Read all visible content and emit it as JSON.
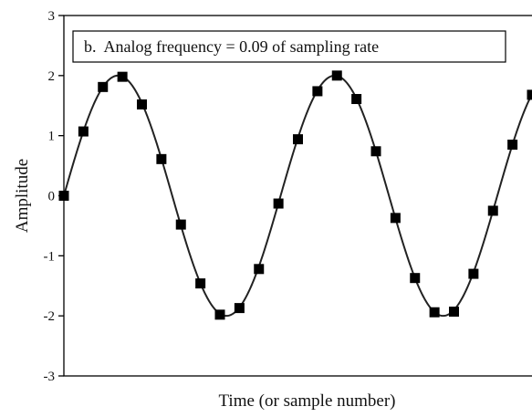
{
  "chart_data": {
    "type": "line",
    "title": "b.  Analog frequency = 0.09 of sampling rate",
    "xlabel": "Time (or sample number)",
    "ylabel": "Amplitude",
    "ylim": [
      -3,
      3
    ],
    "xlim": [
      0,
      24
    ],
    "y_ticks": [
      {
        "value": 3,
        "label": "3"
      },
      {
        "value": 2,
        "label": "2"
      },
      {
        "value": 1,
        "label": "1"
      },
      {
        "value": 0,
        "label": "0"
      },
      {
        "value": -1,
        "label": "-1"
      },
      {
        "value": -2,
        "label": "-2"
      },
      {
        "value": -3,
        "label": "-3"
      }
    ],
    "grid": false,
    "annotation_box": "top-right",
    "analog_signal": {
      "amplitude": 2,
      "frequency_per_sample": 0.09
    },
    "samples": {
      "x": [
        0,
        1,
        2,
        3,
        4,
        5,
        6,
        7,
        8,
        9,
        10,
        11,
        12,
        13,
        14,
        15,
        16,
        17,
        18,
        19,
        20,
        21,
        22,
        23,
        24
      ],
      "y": [
        0.0,
        1.07,
        1.81,
        1.98,
        1.52,
        0.61,
        -0.48,
        -1.46,
        -1.98,
        -1.87,
        -1.22,
        -0.13,
        0.94,
        1.74,
        2.0,
        1.61,
        0.74,
        -0.37,
        -1.37,
        -1.94,
        -1.93,
        -1.3,
        -0.25,
        0.85,
        1.68
      ]
    },
    "colors": {
      "line": "#222222",
      "marker": "#000000",
      "axis": "#000000"
    }
  }
}
